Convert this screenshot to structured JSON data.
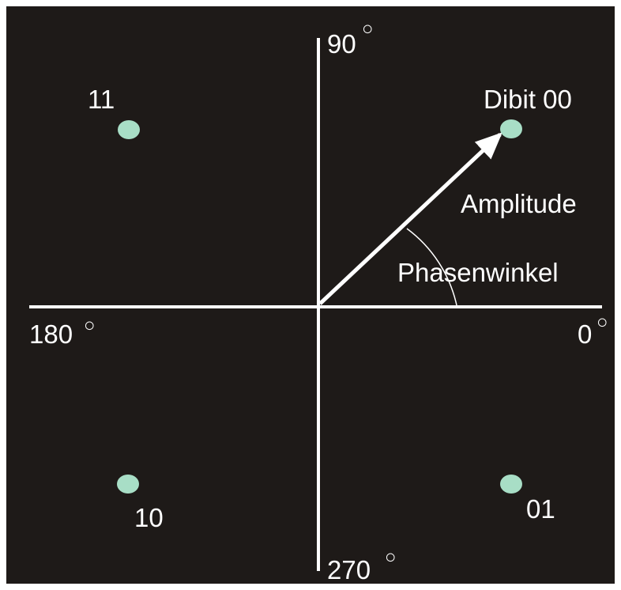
{
  "colors": {
    "background": "#1e1a18",
    "border": "#ffffff",
    "axis": "#ffffff",
    "text": "#ffffff",
    "point": "#a8dec6"
  },
  "axes": {
    "deg_90": "90",
    "deg_180": "180",
    "deg_0": "0",
    "deg_270": "270",
    "degree_symbol": "○"
  },
  "points": {
    "dibit_00": "Dibit 00",
    "dibit_01": "01",
    "dibit_10": "10",
    "dibit_11": "11"
  },
  "vector": {
    "amplitude_label": "Amplitude",
    "phase_label": "Phasenwinkel"
  }
}
